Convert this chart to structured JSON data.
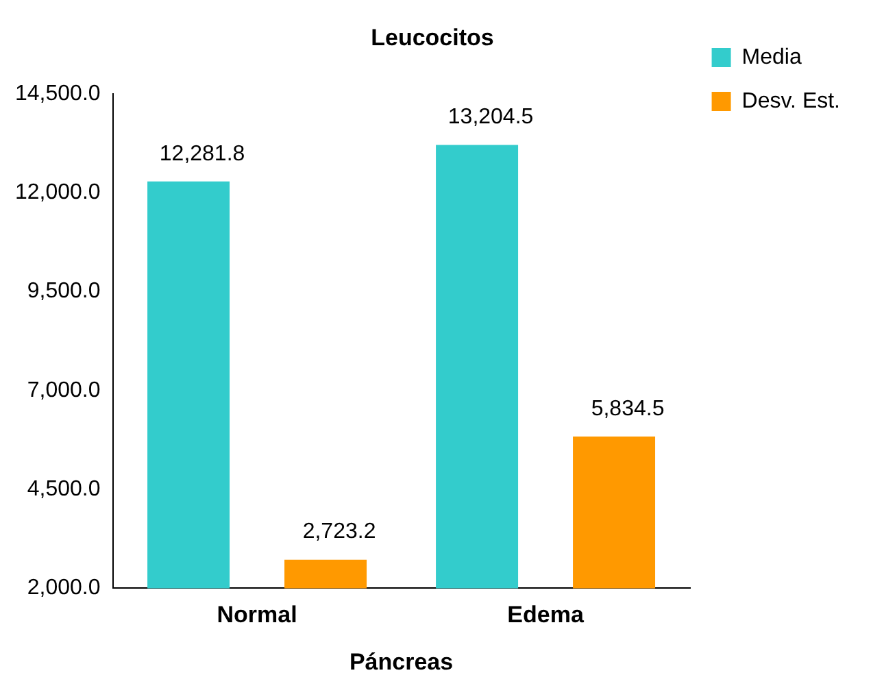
{
  "chart_data": {
    "type": "bar",
    "title": "Leucocitos",
    "xlabel": "Páncreas",
    "categories": [
      "Normal",
      "Edema"
    ],
    "series": [
      {
        "name": "Media",
        "color": "#33cccc",
        "values": [
          12281.8,
          13204.5
        ],
        "value_labels": [
          "12,281.8",
          "13,204.5"
        ]
      },
      {
        "name": "Desv. Est.",
        "color": "#ff9900",
        "values": [
          2723.2,
          5834.5
        ],
        "value_labels": [
          "2,723.2",
          "5,834.5"
        ]
      }
    ],
    "ylim": [
      2000,
      14500
    ],
    "yticks": [
      {
        "value": 2000,
        "label": "2,000.0"
      },
      {
        "value": 4500,
        "label": "4,500.0"
      },
      {
        "value": 7000,
        "label": "7,000.0"
      },
      {
        "value": 9500,
        "label": "9,500.0"
      },
      {
        "value": 12000,
        "label": "12,000.0"
      },
      {
        "value": 14500,
        "label": "14,500.0"
      }
    ],
    "grid": false,
    "legend": "right"
  }
}
